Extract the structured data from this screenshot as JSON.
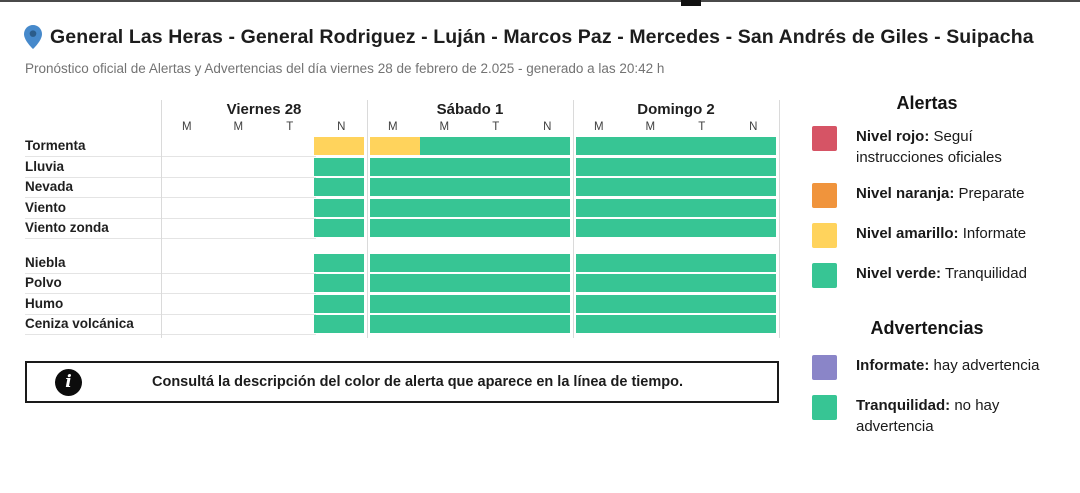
{
  "header": {
    "title": "General Las Heras - General Rodriguez - Luján - Marcos Paz - Mercedes - San Andrés de Giles - Suipacha",
    "subtitle": "Pronóstico oficial de Alertas y Advertencias del día viernes 28 de febrero de 2.025 - generado a las 20:42 h",
    "pin_icon": "location-pin",
    "pin_color": "#4689CB"
  },
  "colors": {
    "verde": "#37C594",
    "amarillo": "#FFD35C",
    "rojo": "#D65465",
    "naranja": "#F0943C",
    "violeta": "#8A85C8"
  },
  "timeline": {
    "days": [
      {
        "label": "Viernes 28",
        "subcols": [
          "M",
          "M",
          "T",
          "N"
        ]
      },
      {
        "label": "Sábado 1",
        "subcols": [
          "M",
          "M",
          "T",
          "N"
        ]
      },
      {
        "label": "Domingo 2",
        "subcols": [
          "M",
          "M",
          "T",
          "N"
        ]
      }
    ],
    "groups": [
      {
        "rows": [
          {
            "label": "Tormenta",
            "cells": [
              [
                "",
                "",
                "",
                "amarillo"
              ],
              [
                "amarillo",
                "verde",
                "verde",
                "verde"
              ],
              [
                "verde",
                "verde",
                "verde",
                "verde"
              ]
            ]
          },
          {
            "label": "Lluvia",
            "cells": [
              [
                "",
                "",
                "",
                "verde"
              ],
              [
                "verde",
                "verde",
                "verde",
                "verde"
              ],
              [
                "verde",
                "verde",
                "verde",
                "verde"
              ]
            ]
          },
          {
            "label": "Nevada",
            "cells": [
              [
                "",
                "",
                "",
                "verde"
              ],
              [
                "verde",
                "verde",
                "verde",
                "verde"
              ],
              [
                "verde",
                "verde",
                "verde",
                "verde"
              ]
            ]
          },
          {
            "label": "Viento",
            "cells": [
              [
                "",
                "",
                "",
                "verde"
              ],
              [
                "verde",
                "verde",
                "verde",
                "verde"
              ],
              [
                "verde",
                "verde",
                "verde",
                "verde"
              ]
            ]
          },
          {
            "label": "Viento zonda",
            "cells": [
              [
                "",
                "",
                "",
                "verde"
              ],
              [
                "verde",
                "verde",
                "verde",
                "verde"
              ],
              [
                "verde",
                "verde",
                "verde",
                "verde"
              ]
            ]
          }
        ]
      },
      {
        "rows": [
          {
            "label": "Niebla",
            "cells": [
              [
                "",
                "",
                "",
                "verde"
              ],
              [
                "verde",
                "verde",
                "verde",
                "verde"
              ],
              [
                "verde",
                "verde",
                "verde",
                "verde"
              ]
            ]
          },
          {
            "label": "Polvo",
            "cells": [
              [
                "",
                "",
                "",
                "verde"
              ],
              [
                "verde",
                "verde",
                "verde",
                "verde"
              ],
              [
                "verde",
                "verde",
                "verde",
                "verde"
              ]
            ]
          },
          {
            "label": "Humo",
            "cells": [
              [
                "",
                "",
                "",
                "verde"
              ],
              [
                "verde",
                "verde",
                "verde",
                "verde"
              ],
              [
                "verde",
                "verde",
                "verde",
                "verde"
              ]
            ]
          },
          {
            "label": "Ceniza volcánica",
            "cells": [
              [
                "",
                "",
                "",
                "verde"
              ],
              [
                "verde",
                "verde",
                "verde",
                "verde"
              ],
              [
                "verde",
                "verde",
                "verde",
                "verde"
              ]
            ]
          }
        ]
      }
    ]
  },
  "legend": {
    "alertas": {
      "title": "Alertas",
      "items": [
        {
          "color_key": "rojo",
          "label": "Nivel rojo:",
          "text": " Seguí instrucciones oficiales"
        },
        {
          "color_key": "naranja",
          "label": "Nivel naranja:",
          "text": " Preparate"
        },
        {
          "color_key": "amarillo",
          "label": "Nivel amarillo:",
          "text": " Informate"
        },
        {
          "color_key": "verde",
          "label": "Nivel verde:",
          "text": " Tranquilidad"
        }
      ]
    },
    "advertencias": {
      "title": "Advertencias",
      "items": [
        {
          "color_key": "violeta",
          "label": "Informate:",
          "text": " hay advertencia"
        },
        {
          "color_key": "verde",
          "label": "Tranquilidad:",
          "text": " no hay advertencia"
        }
      ]
    }
  },
  "info_box": {
    "icon": "info-icon",
    "text": "Consultá la descripción del color de alerta que aparece en la línea de tiempo."
  }
}
